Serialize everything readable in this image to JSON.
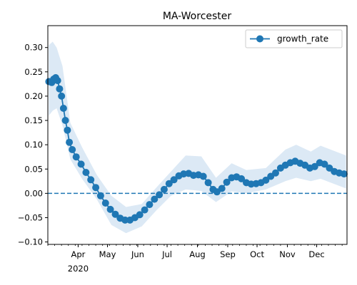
{
  "chart_data": {
    "type": "line",
    "title": "MA-Worcester",
    "xlabel": "",
    "ylabel": "",
    "legend": {
      "placement": "top-right",
      "entries": [
        "growth_rate"
      ]
    },
    "x_range": [
      "2020-03-02",
      "2020-12-31"
    ],
    "ylim": [
      -0.105,
      0.345
    ],
    "y_ticks": [
      -0.1,
      -0.05,
      0.0,
      0.05,
      0.1,
      0.15,
      0.2,
      0.25,
      0.3
    ],
    "y_tick_labels": [
      "−0.10",
      "−0.05",
      "0.00",
      "0.05",
      "0.10",
      "0.15",
      "0.20",
      "0.25",
      "0.30"
    ],
    "x_ticks": [
      {
        "date": "2020-04-01",
        "label": "Apr",
        "sublabel": "2020"
      },
      {
        "date": "2020-05-01",
        "label": "May"
      },
      {
        "date": "2020-06-01",
        "label": "Jun"
      },
      {
        "date": "2020-07-01",
        "label": "Jul"
      },
      {
        "date": "2020-08-01",
        "label": "Aug"
      },
      {
        "date": "2020-09-01",
        "label": "Sep"
      },
      {
        "date": "2020-10-01",
        "label": "Oct"
      },
      {
        "date": "2020-11-01",
        "label": "Nov"
      },
      {
        "date": "2020-12-01",
        "label": "Dec"
      }
    ],
    "reference_line": {
      "y": 0,
      "style": "dashed"
    },
    "colors": {
      "line": "#1f77b4",
      "band": "#dce9f5",
      "dashed": "#1f77b4"
    },
    "series": [
      {
        "name": "growth_rate",
        "marker": "circle",
        "points": [
          [
            "2020-03-02",
            0.23
          ],
          [
            "2020-03-05",
            0.228
          ],
          [
            "2020-03-07",
            0.235
          ],
          [
            "2020-03-09",
            0.238
          ],
          [
            "2020-03-11",
            0.232
          ],
          [
            "2020-03-13",
            0.215
          ],
          [
            "2020-03-15",
            0.2
          ],
          [
            "2020-03-17",
            0.175
          ],
          [
            "2020-03-19",
            0.15
          ],
          [
            "2020-03-21",
            0.13
          ],
          [
            "2020-03-23",
            0.105
          ],
          [
            "2020-03-26",
            0.09
          ],
          [
            "2020-03-30",
            0.075
          ],
          [
            "2020-04-04",
            0.06
          ],
          [
            "2020-04-09",
            0.043
          ],
          [
            "2020-04-14",
            0.028
          ],
          [
            "2020-04-19",
            0.012
          ],
          [
            "2020-04-24",
            -0.005
          ],
          [
            "2020-04-29",
            -0.02
          ],
          [
            "2020-05-04",
            -0.033
          ],
          [
            "2020-05-09",
            -0.043
          ],
          [
            "2020-05-14",
            -0.051
          ],
          [
            "2020-05-19",
            -0.055
          ],
          [
            "2020-05-24",
            -0.055
          ],
          [
            "2020-05-29",
            -0.05
          ],
          [
            "2020-06-03",
            -0.044
          ],
          [
            "2020-06-08",
            -0.034
          ],
          [
            "2020-06-13",
            -0.023
          ],
          [
            "2020-06-18",
            -0.012
          ],
          [
            "2020-06-23",
            -0.003
          ],
          [
            "2020-06-28",
            0.008
          ],
          [
            "2020-07-03",
            0.02
          ],
          [
            "2020-07-08",
            0.028
          ],
          [
            "2020-07-13",
            0.036
          ],
          [
            "2020-07-18",
            0.04
          ],
          [
            "2020-07-23",
            0.041
          ],
          [
            "2020-07-28",
            0.037
          ],
          [
            "2020-08-02",
            0.038
          ],
          [
            "2020-08-07",
            0.035
          ],
          [
            "2020-08-12",
            0.022
          ],
          [
            "2020-08-17",
            0.008
          ],
          [
            "2020-08-21",
            0.003
          ],
          [
            "2020-08-26",
            0.01
          ],
          [
            "2020-08-31",
            0.023
          ],
          [
            "2020-09-05",
            0.032
          ],
          [
            "2020-09-10",
            0.034
          ],
          [
            "2020-09-15",
            0.03
          ],
          [
            "2020-09-20",
            0.022
          ],
          [
            "2020-09-25",
            0.019
          ],
          [
            "2020-09-30",
            0.02
          ],
          [
            "2020-10-05",
            0.022
          ],
          [
            "2020-10-10",
            0.027
          ],
          [
            "2020-10-15",
            0.035
          ],
          [
            "2020-10-20",
            0.042
          ],
          [
            "2020-10-25",
            0.052
          ],
          [
            "2020-10-30",
            0.058
          ],
          [
            "2020-11-04",
            0.063
          ],
          [
            "2020-11-09",
            0.066
          ],
          [
            "2020-11-14",
            0.062
          ],
          [
            "2020-11-19",
            0.058
          ],
          [
            "2020-11-24",
            0.052
          ],
          [
            "2020-11-29",
            0.055
          ],
          [
            "2020-12-04",
            0.063
          ],
          [
            "2020-12-09",
            0.06
          ],
          [
            "2020-12-14",
            0.052
          ],
          [
            "2020-12-19",
            0.045
          ],
          [
            "2020-12-24",
            0.042
          ],
          [
            "2020-12-29",
            0.04
          ]
        ],
        "band": [
          [
            "2020-03-02",
            0.16,
            0.305
          ],
          [
            "2020-03-06",
            0.17,
            0.312
          ],
          [
            "2020-03-10",
            0.175,
            0.3
          ],
          [
            "2020-03-16",
            0.14,
            0.262
          ],
          [
            "2020-03-24",
            0.07,
            0.145
          ],
          [
            "2020-04-05",
            0.03,
            0.095
          ],
          [
            "2020-04-20",
            -0.012,
            0.038
          ],
          [
            "2020-05-05",
            -0.065,
            -0.005
          ],
          [
            "2020-05-20",
            -0.082,
            -0.028
          ],
          [
            "2020-06-05",
            -0.068,
            -0.022
          ],
          [
            "2020-06-20",
            -0.035,
            0.012
          ],
          [
            "2020-07-05",
            -0.005,
            0.045
          ],
          [
            "2020-07-20",
            0.008,
            0.078
          ],
          [
            "2020-08-05",
            0.005,
            0.076
          ],
          [
            "2020-08-20",
            -0.018,
            0.032
          ],
          [
            "2020-09-05",
            0.004,
            0.062
          ],
          [
            "2020-09-20",
            0.0,
            0.048
          ],
          [
            "2020-10-10",
            0.008,
            0.052
          ],
          [
            "2020-10-30",
            0.025,
            0.09
          ],
          [
            "2020-11-10",
            0.032,
            0.1
          ],
          [
            "2020-11-25",
            0.025,
            0.086
          ],
          [
            "2020-12-05",
            0.03,
            0.098
          ],
          [
            "2020-12-31",
            0.01,
            0.078
          ]
        ]
      }
    ]
  }
}
